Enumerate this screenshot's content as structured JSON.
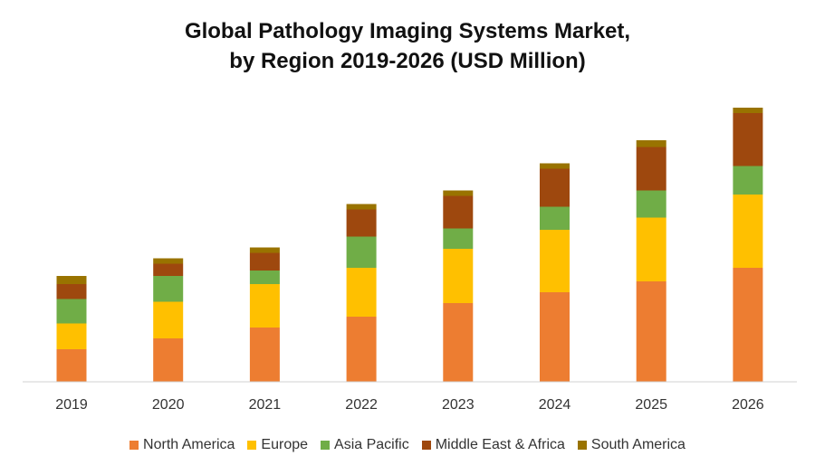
{
  "chart_data": {
    "type": "bar",
    "stacked": true,
    "title_line1": "Global Pathology Imaging Systems Market,",
    "title_line2": "by Region 2019-2026 (USD Million)",
    "xlabel": "",
    "ylabel": "",
    "categories": [
      "2019",
      "2020",
      "2021",
      "2022",
      "2023",
      "2024",
      "2025",
      "2026"
    ],
    "ylim": [
      0,
      100
    ],
    "grid": false,
    "legend_position": "bottom",
    "series": [
      {
        "name": "North America",
        "color": "#ED7D31",
        "values": [
          12,
          16,
          20,
          24,
          29,
          33,
          37,
          42
        ]
      },
      {
        "name": "Europe",
        "color": "#FFC000",
        "values": [
          9.5,
          13.5,
          16,
          18,
          20,
          23,
          23.5,
          27
        ]
      },
      {
        "name": "Asia Pacific",
        "color": "#70AD47",
        "values": [
          9,
          9.5,
          5,
          11.5,
          7.5,
          8.5,
          10,
          10.5
        ]
      },
      {
        "name": "Middle East & Africa",
        "color": "#9E480E",
        "values": [
          5.5,
          4.5,
          6.5,
          10,
          12,
          14,
          16,
          19.5
        ]
      },
      {
        "name": "South America",
        "color": "#997300",
        "values": [
          3,
          2,
          2,
          2,
          2,
          2,
          2.5,
          2
        ]
      }
    ]
  }
}
